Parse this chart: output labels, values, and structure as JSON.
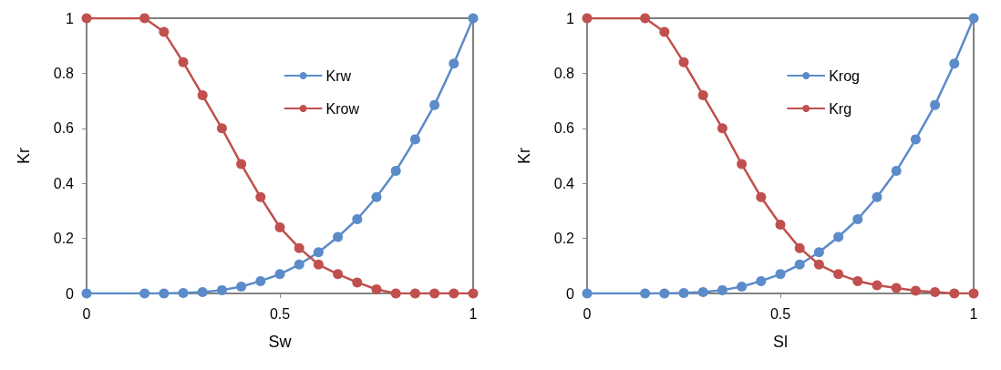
{
  "chart_data": [
    {
      "type": "line",
      "xlabel": "Sw",
      "ylabel": "Kr",
      "xlim": [
        0,
        1
      ],
      "xticks": [
        0,
        0.5,
        1
      ],
      "ylim": [
        0,
        1
      ],
      "yticks": [
        0,
        0.2,
        0.4,
        0.6,
        0.8,
        1
      ],
      "grid": false,
      "legend": "top right",
      "marker": "circle",
      "line_style": "solid",
      "x": [
        0,
        0.15,
        0.2,
        0.25,
        0.3,
        0.35,
        0.4,
        0.45,
        0.5,
        0.55,
        0.6,
        0.65,
        0.7,
        0.75,
        0.8,
        0.85,
        0.9,
        0.95,
        1
      ],
      "series": [
        {
          "name": "Krw",
          "color": "#5b8bc9",
          "values": [
            0,
            0,
            0,
            0.002,
            0.005,
            0.012,
            0.025,
            0.045,
            0.07,
            0.105,
            0.15,
            0.205,
            0.27,
            0.35,
            0.445,
            0.56,
            0.685,
            0.835,
            1
          ]
        },
        {
          "name": "Krow",
          "color": "#c0504d",
          "values": [
            1,
            1,
            0.95,
            0.84,
            0.72,
            0.6,
            0.47,
            0.35,
            0.24,
            0.165,
            0.105,
            0.07,
            0.04,
            0.015,
            0,
            0,
            0,
            0,
            0
          ]
        }
      ]
    },
    {
      "type": "line",
      "xlabel": "Sl",
      "ylabel": "Kr",
      "xlim": [
        0,
        1
      ],
      "xticks": [
        0,
        0.5,
        1
      ],
      "ylim": [
        0,
        1
      ],
      "yticks": [
        0,
        0.2,
        0.4,
        0.6,
        0.8,
        1
      ],
      "grid": false,
      "legend": "top right",
      "marker": "circle",
      "line_style": "solid",
      "x": [
        0,
        0.15,
        0.2,
        0.25,
        0.3,
        0.35,
        0.4,
        0.45,
        0.5,
        0.55,
        0.6,
        0.65,
        0.7,
        0.75,
        0.8,
        0.85,
        0.9,
        0.95,
        1
      ],
      "series": [
        {
          "name": "Krog",
          "color": "#5b8bc9",
          "values": [
            0,
            0,
            0,
            0.002,
            0.005,
            0.012,
            0.025,
            0.045,
            0.07,
            0.105,
            0.15,
            0.205,
            0.27,
            0.35,
            0.445,
            0.56,
            0.685,
            0.835,
            1
          ]
        },
        {
          "name": "Krg",
          "color": "#c0504d",
          "values": [
            1,
            1,
            0.95,
            0.84,
            0.72,
            0.6,
            0.47,
            0.35,
            0.25,
            0.165,
            0.105,
            0.07,
            0.045,
            0.03,
            0.02,
            0.01,
            0.005,
            0,
            0
          ]
        }
      ]
    }
  ]
}
